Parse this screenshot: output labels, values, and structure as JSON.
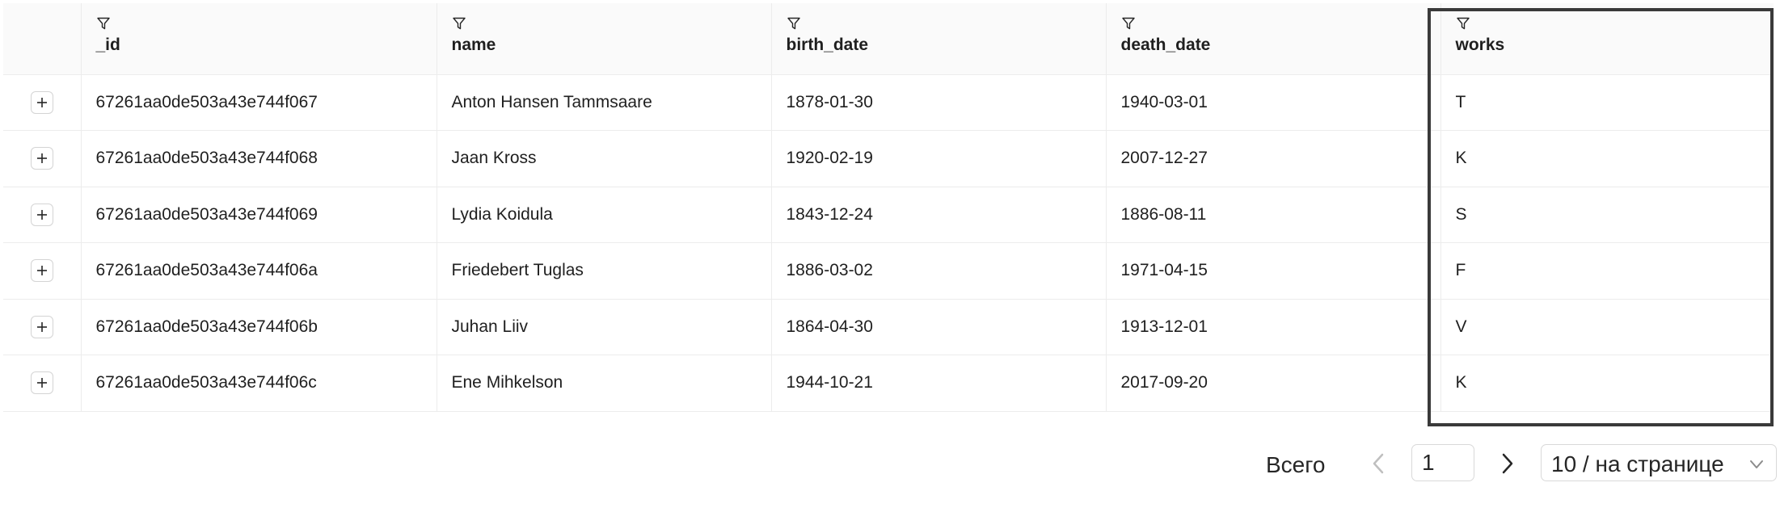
{
  "table": {
    "columns": [
      {
        "key": "_id",
        "label": "_id"
      },
      {
        "key": "name",
        "label": "name"
      },
      {
        "key": "birth_date",
        "label": "birth_date"
      },
      {
        "key": "death_date",
        "label": "death_date"
      },
      {
        "key": "works",
        "label": "works"
      }
    ],
    "rows": [
      {
        "_id": "67261aa0de503a43e744f067",
        "name": "Anton Hansen Tammsaare",
        "birth_date": "1878-01-30",
        "death_date": "1940-03-01",
        "works": "T"
      },
      {
        "_id": "67261aa0de503a43e744f068",
        "name": "Jaan Kross",
        "birth_date": "1920-02-19",
        "death_date": "2007-12-27",
        "works": "K"
      },
      {
        "_id": "67261aa0de503a43e744f069",
        "name": "Lydia Koidula",
        "birth_date": "1843-12-24",
        "death_date": "1886-08-11",
        "works": "S"
      },
      {
        "_id": "67261aa0de503a43e744f06a",
        "name": "Friedebert Tuglas",
        "birth_date": "1886-03-02",
        "death_date": "1971-04-15",
        "works": "F"
      },
      {
        "_id": "67261aa0de503a43e744f06b",
        "name": "Juhan Liiv",
        "birth_date": "1864-04-30",
        "death_date": "1913-12-01",
        "works": "V"
      },
      {
        "_id": "67261aa0de503a43e744f06c",
        "name": "Ene Mihkelson",
        "birth_date": "1944-10-21",
        "death_date": "2017-09-20",
        "works": "K"
      }
    ]
  },
  "pagination": {
    "total_label": "Всего",
    "current_page": "1",
    "page_size_label": "10 / на странице"
  },
  "icons": {
    "column_filter": "filter-icon",
    "row_expand": "plus-icon",
    "prev": "chevron-left-icon",
    "next": "chevron-right-icon",
    "dropdown": "chevron-down-icon"
  },
  "colors": {
    "header_bg": "#fafafa",
    "border": "#ececec",
    "highlight_border": "#3a3a3a",
    "text": "#1f1f1f"
  }
}
